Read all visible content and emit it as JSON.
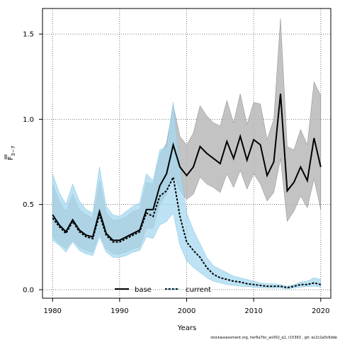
{
  "chart_data": {
    "type": "area",
    "xlabel": "Years",
    "ylabel_main": "F",
    "ylabel_sub": "3−7",
    "xlim": [
      1978.5,
      2021.5
    ],
    "ylim": [
      -0.05,
      1.65
    ],
    "x_ticks": [
      1980,
      1990,
      2000,
      2010,
      2020
    ],
    "y_ticks": [
      0.0,
      0.5,
      1.0,
      1.5
    ],
    "y_tick_labels": [
      "0.0",
      "0.5",
      "1.0",
      "1.5"
    ],
    "grid": true,
    "legend_placement": "bottom-center",
    "colors": {
      "base_band": "#b8b8b8",
      "base_line": "#000000",
      "current_band": "#a6d8f0",
      "current_line": "#000000"
    },
    "series": [
      {
        "name": "base",
        "style": "solid",
        "x": [
          1980,
          1981,
          1982,
          1983,
          1984,
          1985,
          1986,
          1987,
          1988,
          1989,
          1990,
          1991,
          1992,
          1993,
          1994,
          1995,
          1996,
          1997,
          1998,
          1999,
          2000,
          2001,
          2002,
          2003,
          2004,
          2005,
          2006,
          2007,
          2008,
          2009,
          2010,
          2011,
          2012,
          2013,
          2014,
          2015,
          2016,
          2017,
          2018,
          2019,
          2020
        ],
        "values": [
          0.44,
          0.38,
          0.34,
          0.41,
          0.35,
          0.32,
          0.31,
          0.46,
          0.33,
          0.29,
          0.29,
          0.31,
          0.33,
          0.35,
          0.47,
          0.47,
          0.61,
          0.68,
          0.85,
          0.72,
          0.67,
          0.72,
          0.84,
          0.8,
          0.77,
          0.74,
          0.87,
          0.77,
          0.9,
          0.76,
          0.88,
          0.85,
          0.67,
          0.75,
          1.15,
          0.58,
          0.63,
          0.72,
          0.64,
          0.89,
          0.72
        ],
        "lower": [
          0.31,
          0.27,
          0.24,
          0.29,
          0.25,
          0.23,
          0.22,
          0.33,
          0.24,
          0.21,
          0.21,
          0.22,
          0.24,
          0.25,
          0.36,
          0.36,
          0.5,
          0.56,
          0.68,
          0.58,
          0.53,
          0.56,
          0.66,
          0.62,
          0.6,
          0.57,
          0.68,
          0.6,
          0.7,
          0.59,
          0.68,
          0.62,
          0.52,
          0.57,
          0.77,
          0.4,
          0.46,
          0.55,
          0.48,
          0.65,
          0.47
        ],
        "upper": [
          0.62,
          0.52,
          0.46,
          0.56,
          0.47,
          0.44,
          0.42,
          0.64,
          0.45,
          0.41,
          0.41,
          0.43,
          0.46,
          0.47,
          0.63,
          0.62,
          0.79,
          0.86,
          1.08,
          0.9,
          0.85,
          0.92,
          1.08,
          1.02,
          0.98,
          0.96,
          1.11,
          0.98,
          1.15,
          0.97,
          1.1,
          1.09,
          0.88,
          1.0,
          1.59,
          0.84,
          0.82,
          0.94,
          0.85,
          1.22,
          1.14
        ]
      },
      {
        "name": "current",
        "style": "dashed",
        "x": [
          1980,
          1981,
          1982,
          1983,
          1984,
          1985,
          1986,
          1987,
          1988,
          1989,
          1990,
          1991,
          1992,
          1993,
          1994,
          1995,
          1996,
          1997,
          1998,
          1999,
          2000,
          2001,
          2002,
          2003,
          2004,
          2005,
          2006,
          2007,
          2008,
          2009,
          2010,
          2011,
          2012,
          2013,
          2014,
          2015,
          2016,
          2017,
          2018,
          2019,
          2020
        ],
        "values": [
          0.42,
          0.37,
          0.33,
          0.4,
          0.34,
          0.31,
          0.3,
          0.44,
          0.32,
          0.28,
          0.28,
          0.3,
          0.32,
          0.34,
          0.45,
          0.43,
          0.55,
          0.58,
          0.66,
          0.43,
          0.28,
          0.23,
          0.19,
          0.13,
          0.09,
          0.07,
          0.06,
          0.05,
          0.045,
          0.035,
          0.03,
          0.025,
          0.02,
          0.02,
          0.02,
          0.012,
          0.02,
          0.03,
          0.03,
          0.04,
          0.03
        ],
        "lower": [
          0.29,
          0.26,
          0.22,
          0.28,
          0.23,
          0.21,
          0.2,
          0.31,
          0.22,
          0.19,
          0.19,
          0.2,
          0.22,
          0.23,
          0.31,
          0.3,
          0.38,
          0.4,
          0.45,
          0.26,
          0.17,
          0.13,
          0.1,
          0.07,
          0.05,
          0.04,
          0.03,
          0.025,
          0.02,
          0.018,
          0.015,
          0.012,
          0.01,
          0.01,
          0.01,
          0.005,
          0.01,
          0.015,
          0.018,
          0.02,
          0.015
        ],
        "upper": [
          0.68,
          0.57,
          0.5,
          0.62,
          0.52,
          0.47,
          0.45,
          0.72,
          0.49,
          0.44,
          0.43,
          0.46,
          0.49,
          0.51,
          0.68,
          0.64,
          0.82,
          0.84,
          1.1,
          0.72,
          0.45,
          0.35,
          0.27,
          0.19,
          0.14,
          0.12,
          0.1,
          0.08,
          0.07,
          0.06,
          0.05,
          0.04,
          0.035,
          0.035,
          0.03,
          0.02,
          0.03,
          0.045,
          0.05,
          0.07,
          0.06
        ]
      }
    ]
  },
  "footer_text": "stockassessment.org, her6a7bc_an002_q1, r15393 , git: ec2c2a0c6dde"
}
